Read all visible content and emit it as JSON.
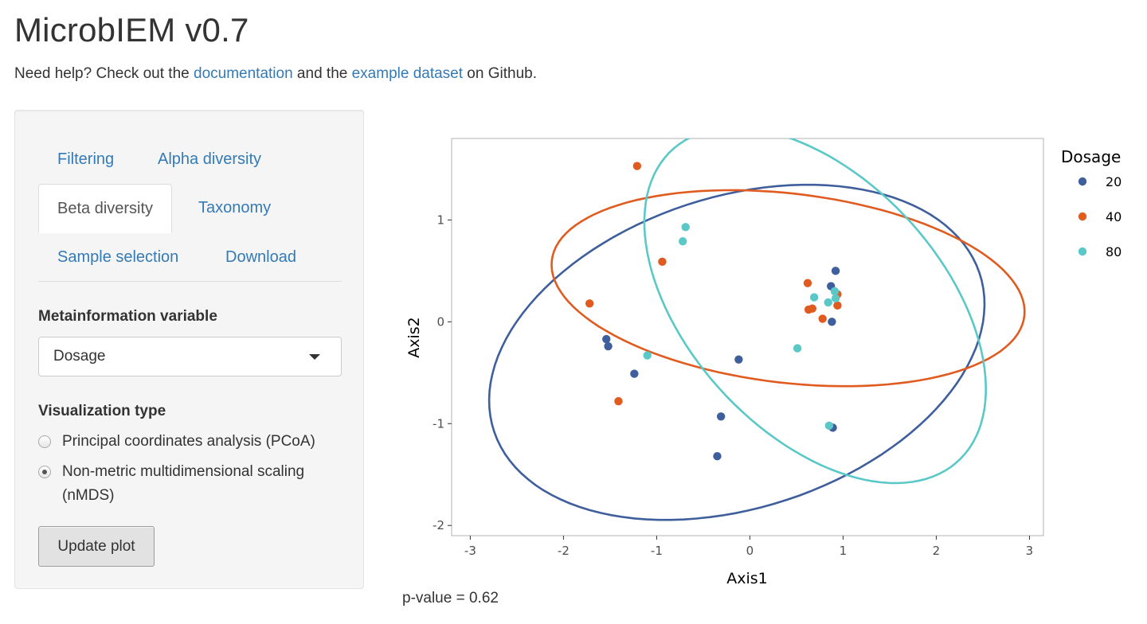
{
  "app": {
    "title": "MicrobIEM v0.7",
    "help_prefix": "Need help? Check out the ",
    "help_link1": "documentation",
    "help_mid": " and the ",
    "help_link2": "example dataset",
    "help_suffix": " on Github."
  },
  "sidebar": {
    "tabs": [
      {
        "label": "Filtering",
        "active": false
      },
      {
        "label": "Alpha diversity",
        "active": false
      },
      {
        "label": "Beta diversity",
        "active": true
      },
      {
        "label": "Taxonomy",
        "active": false
      },
      {
        "label": "Sample selection",
        "active": false
      },
      {
        "label": "Download",
        "active": false
      }
    ],
    "metainfo_label": "Metainformation variable",
    "metainfo_value": "Dosage",
    "viz_label": "Visualization type",
    "viz_options": [
      {
        "label": "Principal coordinates analysis (PCoA)",
        "checked": false
      },
      {
        "label": "Non-metric multidimensional scaling (nMDS)",
        "checked": true
      }
    ],
    "update_button": "Update plot"
  },
  "pvalue": "p-value = 0.62",
  "chart_data": {
    "type": "scatter",
    "xlabel": "Axis1",
    "ylabel": "Axis2",
    "xlim": [
      -3.2,
      3.15
    ],
    "ylim": [
      -2.1,
      1.8
    ],
    "xticks": [
      -3,
      -2,
      -1,
      0,
      1,
      2,
      3
    ],
    "yticks": [
      -2,
      -1,
      0,
      1
    ],
    "grid": false,
    "legend_title": "Dosage",
    "legend_position": "right",
    "series": [
      {
        "name": "20",
        "color": "#3f5e9c",
        "points": [
          [
            -1.54,
            -0.17
          ],
          [
            -1.52,
            -0.24
          ],
          [
            -1.24,
            -0.51
          ],
          [
            -0.12,
            -0.37
          ],
          [
            -0.31,
            -0.93
          ],
          [
            -0.35,
            -1.32
          ],
          [
            0.92,
            0.5
          ],
          [
            0.87,
            0.35
          ],
          [
            0.88,
            0.0
          ],
          [
            0.89,
            -1.04
          ]
        ],
        "ellipse": {
          "cx": -0.14,
          "cy": -0.3,
          "rx": 2.72,
          "ry": 1.54,
          "angle": 15
        }
      },
      {
        "name": "40",
        "color": "#e05b20",
        "points": [
          [
            -1.21,
            1.53
          ],
          [
            -0.94,
            0.59
          ],
          [
            -1.72,
            0.18
          ],
          [
            -1.41,
            -0.78
          ],
          [
            0.62,
            0.38
          ],
          [
            0.63,
            0.12
          ],
          [
            0.67,
            0.13
          ],
          [
            0.78,
            0.03
          ],
          [
            0.94,
            0.27
          ],
          [
            0.94,
            0.16
          ]
        ],
        "ellipse": {
          "cx": 0.41,
          "cy": 0.33,
          "rx": 2.55,
          "ry": 0.93,
          "angle": -6
        }
      },
      {
        "name": "80",
        "color": "#5bc8c8",
        "points": [
          [
            -0.69,
            0.93
          ],
          [
            -0.72,
            0.79
          ],
          [
            -1.1,
            -0.33
          ],
          [
            0.51,
            -0.26
          ],
          [
            0.69,
            0.24
          ],
          [
            0.84,
            0.19
          ],
          [
            0.91,
            0.3
          ],
          [
            0.92,
            0.23
          ],
          [
            0.85,
            -1.02
          ]
        ],
        "ellipse": {
          "cx": 0.7,
          "cy": 0.16,
          "rx": 2.17,
          "ry": 1.3,
          "angle": -42
        }
      }
    ]
  }
}
